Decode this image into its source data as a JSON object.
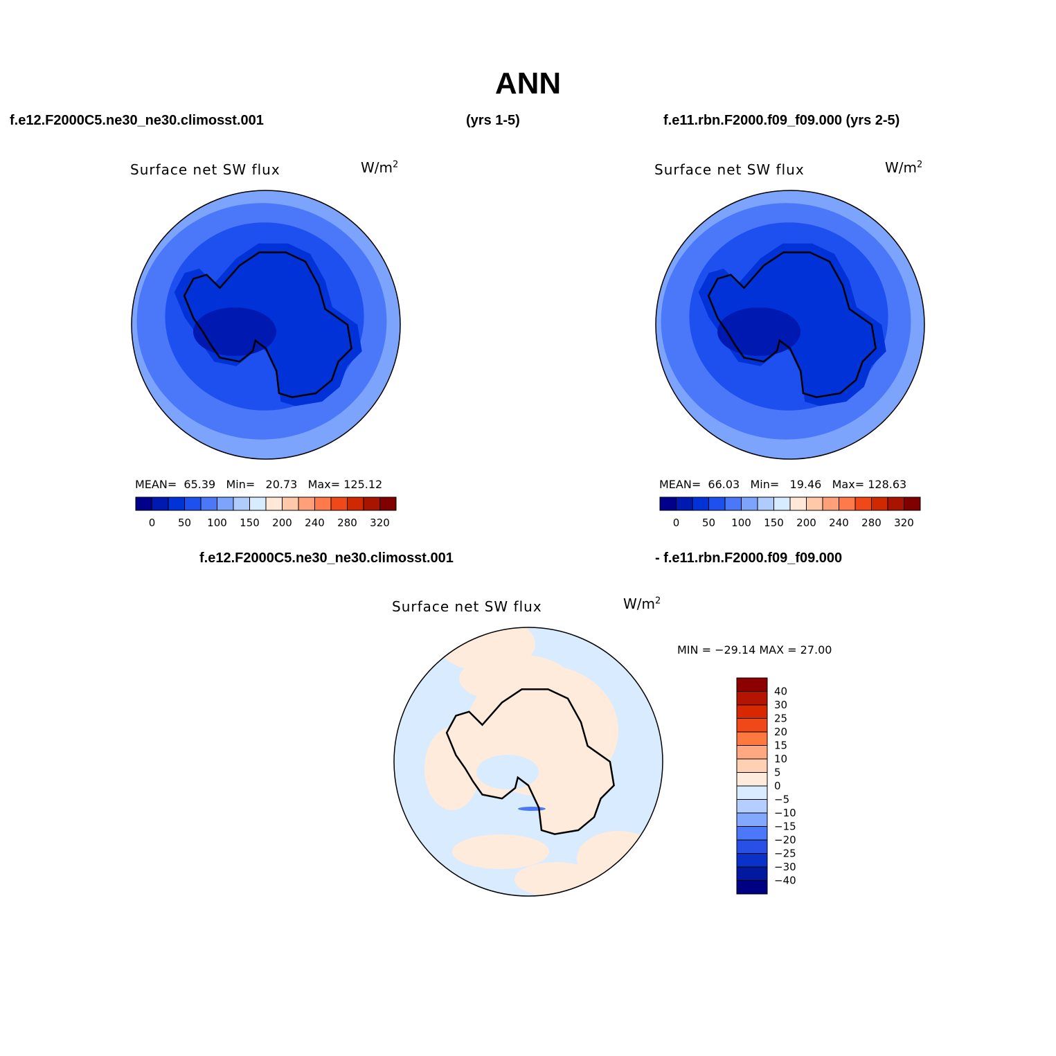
{
  "figure": {
    "title": "ANN",
    "case1_name": "f.e12.F2000C5.ne30_ne30.climosst.001",
    "case1_years": "(yrs 1-5)",
    "case2_header": "f.e11.rbn.F2000.f09_f09.000 (yrs 2-5)",
    "diff_case1": "f.e12.F2000C5.ne30_ne30.climosst.001",
    "diff_case2": "- f.e11.rbn.F2000.f09_f09.000"
  },
  "panels": [
    {
      "variable": "Surface net SW flux",
      "units": "W/m",
      "units_exp": "2",
      "mean_label": "MEAN=",
      "mean": "65.39",
      "min_label": "Min=",
      "min": "20.73",
      "max_label": "Max=",
      "max": "125.12"
    },
    {
      "variable": "Surface net SW flux",
      "units": "W/m",
      "units_exp": "2",
      "mean_label": "MEAN=",
      "mean": "66.03",
      "min_label": "Min=",
      "min": "19.46",
      "max_label": "Max=",
      "max": "128.63"
    }
  ],
  "diff_panel": {
    "variable": "Surface net SW flux",
    "units": "W/m",
    "units_exp": "2",
    "minmax": "MIN = −29.14 MAX =  27.00"
  },
  "colorbars": {
    "abs": {
      "colors": [
        "#00008c",
        "#0019b0",
        "#0032d8",
        "#1e50f0",
        "#4a78f8",
        "#7ca4fc",
        "#b0ccfc",
        "#d8ecff",
        "#ffe8d8",
        "#ffc8a8",
        "#ffa07a",
        "#ff7a4a",
        "#f04818",
        "#d02800",
        "#a81400",
        "#800000"
      ],
      "labels": [
        "0",
        "50",
        "100",
        "150",
        "200",
        "240",
        "280",
        "320"
      ]
    },
    "diff": {
      "colors_top_to_bottom": [
        "#8c0000",
        "#b41400",
        "#d82800",
        "#f04818",
        "#ff7840",
        "#ffa882",
        "#ffd0b4",
        "#ffebdc",
        "#d8ebff",
        "#b4cfff",
        "#82a8ff",
        "#4a78f8",
        "#2850e6",
        "#0a32c8",
        "#0019a0",
        "#000082"
      ],
      "labels_top_to_bottom": [
        "40",
        "30",
        "25",
        "20",
        "15",
        "10",
        "5",
        "0",
        "−5",
        "−10",
        "−15",
        "−20",
        "−25",
        "−30",
        "−40"
      ]
    }
  },
  "map_colors": {
    "outer": "#7ca4fc",
    "ring1": "#4a78f8",
    "ring2": "#1e50f0",
    "ring3": "#0032d8",
    "inner": "#0019b0",
    "diff_neg": "#d8ebff",
    "diff_pos": "#ffebdc",
    "diff_strong_neg": "#4a78f8",
    "diff_strong_pos": "#ffc8a8"
  }
}
